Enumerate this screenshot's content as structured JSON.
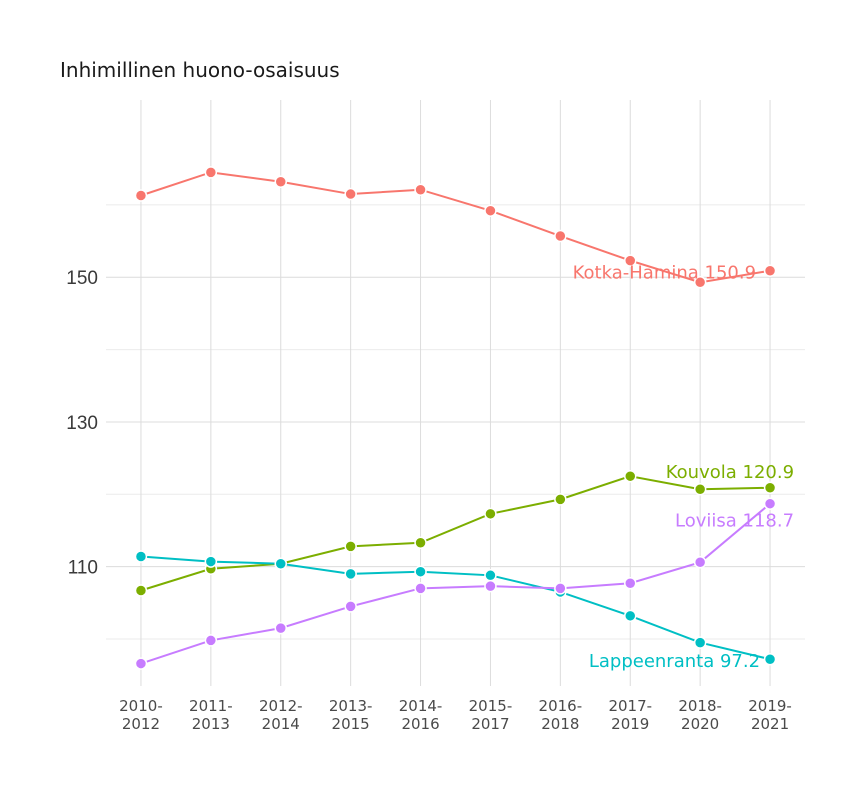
{
  "chart_data": {
    "type": "line",
    "title": "Inhimillinen huono-osaisuus",
    "xlabel": "",
    "ylabel": "",
    "ylim": [
      93.5,
      174.5
    ],
    "grid": true,
    "legend": "none (direct end labels)",
    "categories": [
      [
        "2010-",
        "2012"
      ],
      [
        "2011-",
        "2013"
      ],
      [
        "2012-",
        "2014"
      ],
      [
        "2013-",
        "2015"
      ],
      [
        "2014-",
        "2016"
      ],
      [
        "2015-",
        "2017"
      ],
      [
        "2016-",
        "2018"
      ],
      [
        "2017-",
        "2019"
      ],
      [
        "2018-",
        "2020"
      ],
      [
        "2019-",
        "2021"
      ]
    ],
    "y_ticks": [
      110,
      130,
      150
    ],
    "y_tick_labels": [
      "110",
      "130",
      "150"
    ],
    "y_minor_grid": [
      100,
      120,
      140,
      160
    ],
    "series": [
      {
        "name": "Kotka-Hamina",
        "color": "#F8766D",
        "values": [
          161.3,
          164.5,
          163.2,
          161.5,
          162.1,
          159.2,
          155.7,
          152.3,
          149.3,
          150.9
        ],
        "end_label": "Kotka-Hamina 150.9"
      },
      {
        "name": "Kouvola",
        "color": "#7CAE00",
        "values": [
          106.7,
          109.7,
          110.4,
          112.8,
          113.3,
          117.3,
          119.3,
          122.5,
          120.7,
          120.9
        ],
        "end_label": "Kouvola 120.9"
      },
      {
        "name": "Lappeenranta",
        "color": "#00BFC4",
        "values": [
          111.4,
          110.7,
          110.4,
          109.0,
          109.3,
          108.8,
          106.5,
          103.2,
          99.5,
          97.2
        ],
        "end_label": "Lappeenranta 97.2"
      },
      {
        "name": "Loviisa",
        "color": "#C77CFF",
        "values": [
          96.6,
          99.8,
          101.5,
          104.5,
          107.0,
          107.3,
          107.0,
          107.7,
          110.6,
          118.7
        ],
        "end_label": "Loviisa 118.7"
      }
    ]
  }
}
